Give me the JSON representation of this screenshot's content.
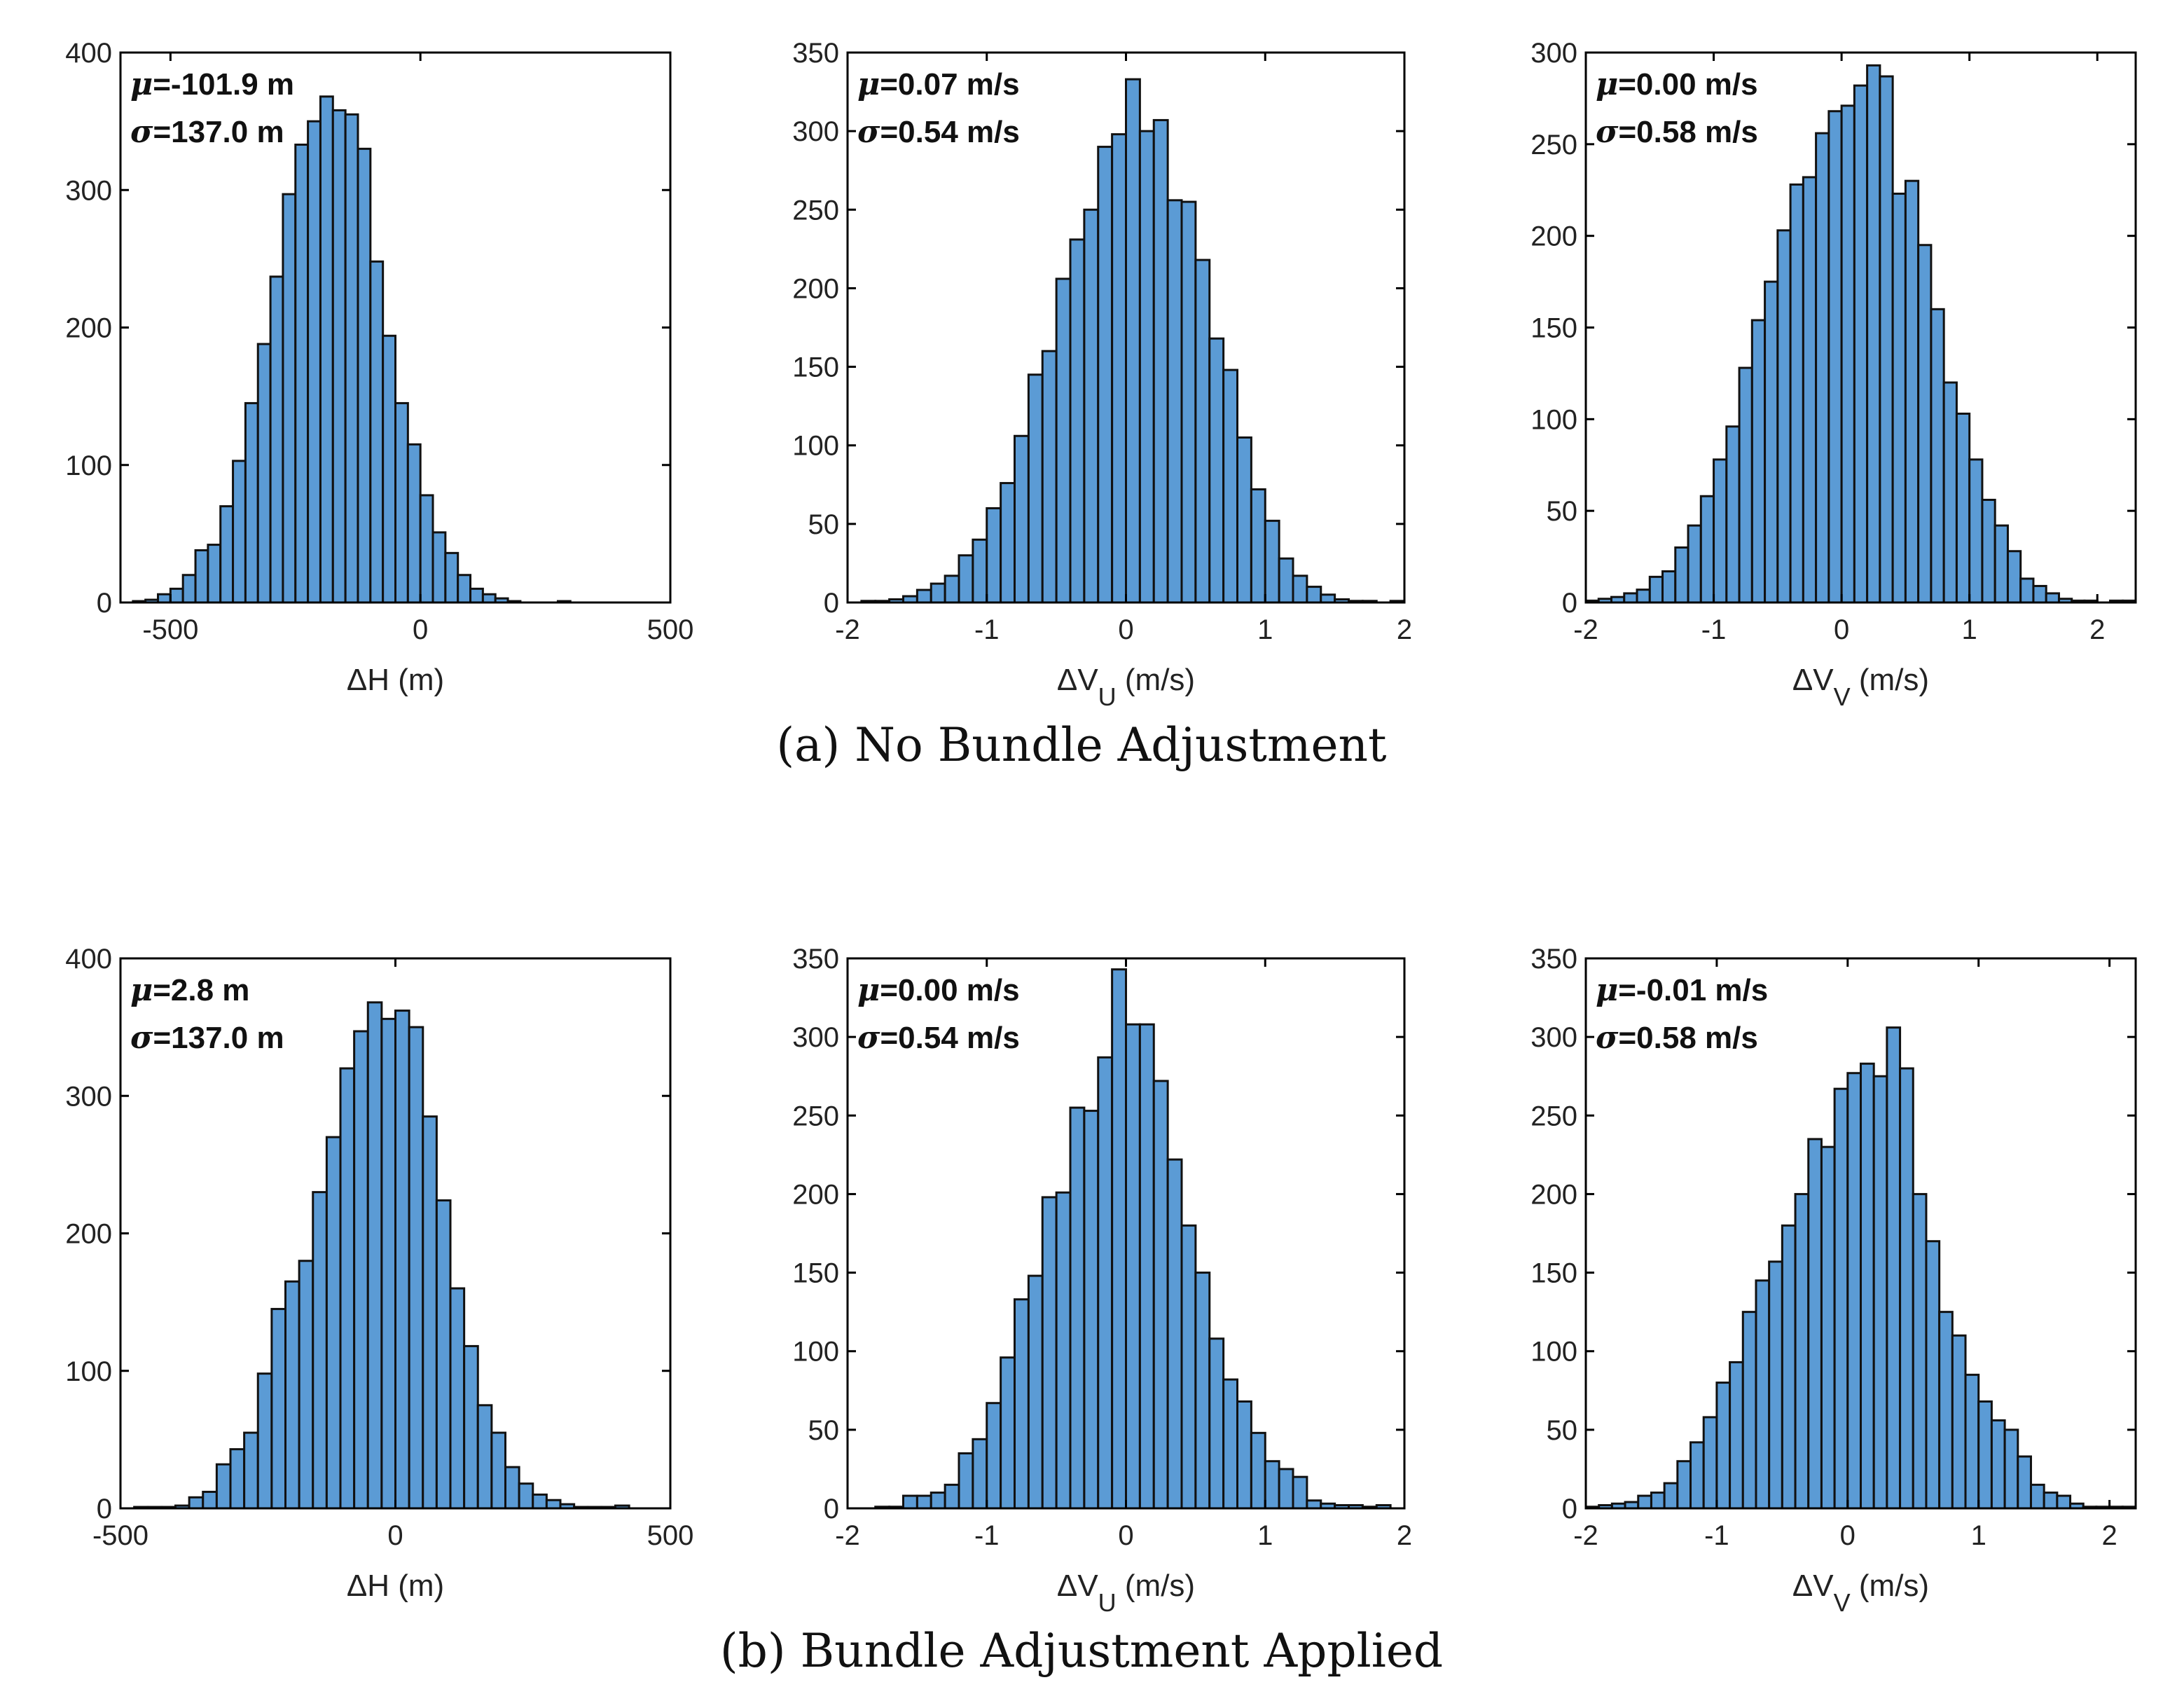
{
  "chart_data": [
    {
      "type": "bar",
      "panel": "a1",
      "group": "a",
      "xlabel": "ΔH (m)",
      "xlim": [
        -600,
        500
      ],
      "ylim": [
        0,
        400
      ],
      "xticks": [
        -500,
        0,
        500
      ],
      "yticks": [
        0,
        100,
        200,
        300,
        400
      ],
      "stats": [
        "μ=-101.9 m",
        "σ=137.0 m"
      ],
      "bin_start": -575,
      "bin_width": 25,
      "values": [
        1,
        2,
        6,
        10,
        20,
        38,
        42,
        70,
        103,
        145,
        188,
        237,
        297,
        333,
        350,
        368,
        358,
        355,
        330,
        248,
        194,
        145,
        115,
        78,
        51,
        36,
        20,
        10,
        6,
        3,
        1,
        0,
        0,
        0,
        1,
        0
      ]
    },
    {
      "type": "bar",
      "panel": "a2",
      "group": "a",
      "xlabel": "ΔVU (m/s)",
      "xlim": [
        -2,
        2
      ],
      "ylim": [
        0,
        350
      ],
      "xticks": [
        -2,
        -1,
        0,
        1,
        2
      ],
      "yticks": [
        0,
        50,
        100,
        150,
        200,
        250,
        300,
        350
      ],
      "stats": [
        "μ=0.07 m/s",
        "σ=0.54 m/s"
      ],
      "bin_start": -2,
      "bin_width": 0.1,
      "values": [
        0,
        1,
        1,
        2,
        4,
        8,
        12,
        17,
        30,
        40,
        60,
        76,
        106,
        145,
        160,
        206,
        231,
        250,
        290,
        298,
        333,
        300,
        307,
        256,
        255,
        218,
        168,
        148,
        105,
        72,
        52,
        28,
        17,
        10,
        5,
        2,
        1,
        1,
        0,
        1
      ]
    },
    {
      "type": "bar",
      "panel": "a3",
      "group": "a",
      "xlabel": "ΔVV (m/s)",
      "xlim": [
        -2,
        2.3
      ],
      "ylim": [
        0,
        300
      ],
      "xticks": [
        -2,
        -1,
        0,
        1,
        2
      ],
      "yticks": [
        0,
        50,
        100,
        150,
        200,
        250,
        300
      ],
      "stats": [
        "μ=0.00 m/s",
        "σ=0.58 m/s"
      ],
      "bin_start": -2,
      "bin_width": 0.1,
      "values": [
        1,
        2,
        3,
        5,
        7,
        14,
        17,
        30,
        42,
        58,
        78,
        96,
        128,
        154,
        175,
        203,
        228,
        232,
        256,
        268,
        271,
        282,
        293,
        287,
        223,
        230,
        195,
        160,
        120,
        103,
        78,
        56,
        42,
        28,
        13,
        9,
        5,
        2,
        1,
        1,
        0,
        1,
        1
      ]
    },
    {
      "type": "bar",
      "panel": "b1",
      "group": "b",
      "xlabel": "ΔH (m)",
      "xlim": [
        -500,
        500
      ],
      "ylim": [
        0,
        400
      ],
      "xticks": [
        -500,
        0,
        500
      ],
      "yticks": [
        0,
        100,
        200,
        300,
        400
      ],
      "stats": [
        "μ=2.8 m",
        "σ=137.0 m"
      ],
      "bin_start": -475,
      "bin_width": 25,
      "values": [
        1,
        1,
        1,
        2,
        8,
        12,
        32,
        43,
        55,
        98,
        145,
        165,
        180,
        230,
        270,
        320,
        347,
        368,
        356,
        362,
        350,
        285,
        224,
        160,
        118,
        75,
        55,
        30,
        18,
        10,
        6,
        3,
        1,
        1,
        1,
        2
      ]
    },
    {
      "type": "bar",
      "panel": "b2",
      "group": "b",
      "xlabel": "ΔVU (m/s)",
      "xlim": [
        -2,
        2
      ],
      "ylim": [
        0,
        350
      ],
      "xticks": [
        -2,
        -1,
        0,
        1,
        2
      ],
      "yticks": [
        0,
        50,
        100,
        150,
        200,
        250,
        300,
        350
      ],
      "stats": [
        "μ=0.00 m/s",
        "σ=0.54 m/s"
      ],
      "bin_start": -2,
      "bin_width": 0.1,
      "values": [
        0,
        0,
        1,
        1,
        8,
        8,
        10,
        15,
        35,
        44,
        67,
        96,
        133,
        148,
        198,
        201,
        255,
        253,
        287,
        343,
        308,
        308,
        272,
        222,
        180,
        150,
        108,
        82,
        68,
        48,
        30,
        25,
        20,
        5,
        3,
        2,
        2,
        1,
        2,
        0
      ]
    },
    {
      "type": "bar",
      "panel": "b3",
      "group": "b",
      "xlabel": "ΔVV (m/s)",
      "xlim": [
        -2,
        2.2
      ],
      "ylim": [
        0,
        350
      ],
      "xticks": [
        -2,
        -1,
        0,
        1,
        2
      ],
      "yticks": [
        0,
        50,
        100,
        150,
        200,
        250,
        300,
        350
      ],
      "stats": [
        "μ=-0.01 m/s",
        "σ=0.58 m/s"
      ],
      "bin_start": -2,
      "bin_width": 0.1,
      "values": [
        1,
        2,
        3,
        4,
        8,
        10,
        16,
        30,
        42,
        58,
        80,
        93,
        125,
        145,
        157,
        180,
        200,
        235,
        230,
        267,
        277,
        283,
        275,
        306,
        280,
        200,
        170,
        125,
        110,
        85,
        68,
        56,
        50,
        33,
        15,
        10,
        8,
        3,
        1,
        1,
        1,
        1
      ]
    }
  ],
  "captions": {
    "a": "(a) No Bundle Adjustment",
    "b": "(b) Bundle Adjustment  Applied"
  },
  "colors": {
    "bar_fill": "#5b9bd5",
    "bar_edge": "#111111",
    "axis": "#000000"
  }
}
